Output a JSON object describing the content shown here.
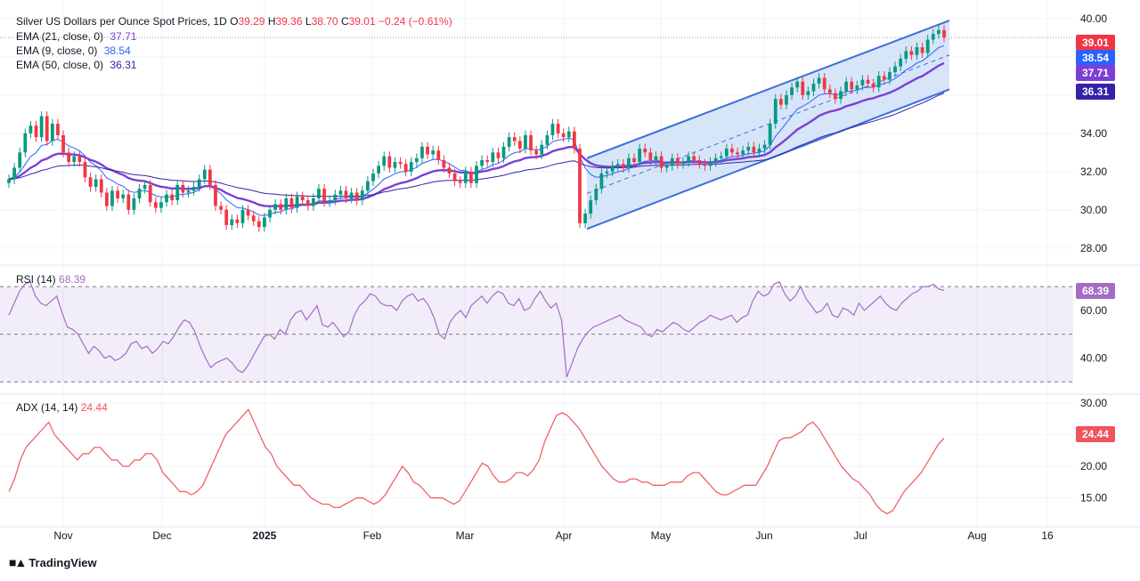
{
  "header": {
    "symbol": "Silver US Dollars per Ounce Spot Prices",
    "interval": "1D",
    "o_label": "O",
    "o": "39.29",
    "h_label": "H",
    "h": "39.36",
    "l_label": "L",
    "l": "38.70",
    "c_label": "C",
    "c": "39.01",
    "change": "−0.24 (−0.61%)"
  },
  "legends": [
    {
      "label": "EMA (21, close, 0)",
      "value": "37.71",
      "color": "#7b3fd6"
    },
    {
      "label": "EMA (9, close, 0)",
      "value": "38.54",
      "color": "#2962ff"
    },
    {
      "label": "EMA (50, close, 0)",
      "value": "36.31",
      "color": "#3422a8"
    }
  ],
  "rsi": {
    "label": "RSI (14)",
    "value": "68.39",
    "color": "#a46cc5"
  },
  "adx": {
    "label": "ADX (14, 14)",
    "value": "24.44",
    "color": "#f2545b"
  },
  "brand": {
    "name": "TradingView"
  },
  "colors": {
    "up": "#089981",
    "down": "#f23645",
    "channel": "#3d6fd9",
    "channel_fill": "#c9dcf7"
  },
  "chart_data": [
    {
      "type": "candlestick",
      "title": "Silver US Dollars per Ounce Spot Prices, 1D",
      "x_tick_labels": [
        "Nov",
        "Dec",
        "2025",
        "Feb",
        "Mar",
        "Apr",
        "May",
        "Jun",
        "Jul",
        "Aug",
        "16"
      ],
      "y_tick_labels": [
        "28.00",
        "30.00",
        "32.00",
        "34.00",
        "36.00",
        "38.00",
        "40.00"
      ],
      "ylim": [
        27.2,
        40.6
      ],
      "last_price": 39.01,
      "price_tags": [
        {
          "value": "39.01",
          "color": "#f23645"
        },
        {
          "value": "38.54",
          "color": "#2962ff"
        },
        {
          "value": "37.71",
          "color": "#7b3fd6"
        },
        {
          "value": "36.31",
          "color": "#3422a8"
        }
      ],
      "closes": [
        31.6,
        32.2,
        33.0,
        34.0,
        34.4,
        33.8,
        34.9,
        33.6,
        34.5,
        33.9,
        33.0,
        32.5,
        32.8,
        32.5,
        31.7,
        31.2,
        31.6,
        30.9,
        30.2,
        31.0,
        30.6,
        30.8,
        30.0,
        30.6,
        31.1,
        31.3,
        30.4,
        30.1,
        30.4,
        30.8,
        30.5,
        31.3,
        30.9,
        31.0,
        31.2,
        31.6,
        32.1,
        31.3,
        30.2,
        30.0,
        29.2,
        29.5,
        29.3,
        30.0,
        29.7,
        29.4,
        29.1,
        29.6,
        30.0,
        30.3,
        30.0,
        30.6,
        30.1,
        30.7,
        30.5,
        30.2,
        30.6,
        31.1,
        30.4,
        30.5,
        30.8,
        31.0,
        30.6,
        30.9,
        30.5,
        31.0,
        31.5,
        31.9,
        32.3,
        32.8,
        32.2,
        32.5,
        32.4,
        32.0,
        32.5,
        32.7,
        33.3,
        32.9,
        33.1,
        32.6,
        32.2,
        31.9,
        31.5,
        31.4,
        32.0,
        31.4,
        32.3,
        32.6,
        32.5,
        33.0,
        32.7,
        33.3,
        33.8,
        33.6,
        33.2,
        33.9,
        33.1,
        32.9,
        33.4,
        33.9,
        34.5,
        34.0,
        33.8,
        34.1,
        33.2,
        29.3,
        29.8,
        30.5,
        31.1,
        31.9,
        32.0,
        32.3,
        32.4,
        32.2,
        32.7,
        32.5,
        33.2,
        33.0,
        32.6,
        32.8,
        32.2,
        32.3,
        32.7,
        32.4,
        32.5,
        32.8,
        32.6,
        32.4,
        32.3,
        32.5,
        32.7,
        32.8,
        33.2,
        33.0,
        32.9,
        33.1,
        33.3,
        33.0,
        33.2,
        33.4,
        34.5,
        35.8,
        35.5,
        36.0,
        36.4,
        36.7,
        36.0,
        36.2,
        36.6,
        36.9,
        36.3,
        36.1,
        35.8,
        36.2,
        36.7,
        36.3,
        36.5,
        36.8,
        36.6,
        36.4,
        37.0,
        36.8,
        37.2,
        37.5,
        37.9,
        38.3,
        38.1,
        38.5,
        38.2,
        38.9,
        39.2,
        39.4,
        39.01
      ]
    },
    {
      "type": "line",
      "title": "RSI (14)",
      "y_tick_labels": [
        "40.00",
        "60.00"
      ],
      "ylim": [
        26,
        76
      ],
      "bands": [
        70,
        50,
        30
      ],
      "last_value": 68.39,
      "values": [
        58,
        63,
        68,
        71,
        72,
        66,
        63,
        62,
        64,
        66,
        59,
        53,
        52,
        50,
        46,
        42,
        45,
        43,
        40,
        41,
        39,
        40,
        42,
        46,
        47,
        44,
        45,
        42,
        44,
        47,
        46,
        49,
        53,
        56,
        55,
        51,
        45,
        40,
        36,
        38,
        39,
        40,
        38,
        35,
        34,
        37,
        41,
        45,
        49,
        50,
        48,
        52,
        50,
        56,
        59,
        60,
        56,
        59,
        62,
        54,
        53,
        55,
        52,
        49,
        51,
        58,
        62,
        64,
        67,
        66,
        63,
        62,
        62,
        60,
        64,
        66,
        67,
        64,
        65,
        62,
        57,
        50,
        48,
        55,
        58,
        60,
        57,
        62,
        64,
        66,
        63,
        66,
        68,
        67,
        63,
        62,
        65,
        60,
        61,
        65,
        68,
        64,
        61,
        63,
        56,
        32,
        38,
        44,
        48,
        51,
        53,
        54,
        55,
        56,
        57,
        58,
        56,
        55,
        54,
        53,
        50,
        49,
        52,
        51,
        53,
        55,
        54,
        52,
        51,
        53,
        55,
        56,
        58,
        57,
        56,
        57,
        58,
        55,
        57,
        58,
        64,
        68,
        66,
        67,
        71,
        72,
        67,
        64,
        66,
        70,
        65,
        62,
        59,
        60,
        63,
        58,
        57,
        61,
        60,
        58,
        63,
        60,
        62,
        64,
        66,
        63,
        61,
        60,
        63,
        65,
        67,
        68,
        70,
        70,
        71,
        69,
        68.39
      ]
    },
    {
      "type": "line",
      "title": "ADX (14, 14)",
      "y_tick_labels": [
        "15.00",
        "20.00",
        "25.00",
        "30.00"
      ],
      "ylim": [
        11,
        31
      ],
      "last_value": 24.44,
      "values": [
        16,
        18,
        21,
        23,
        24,
        25,
        26,
        27,
        25,
        24,
        23,
        22,
        21,
        22,
        22,
        23,
        23,
        22,
        21,
        21,
        20,
        20,
        21,
        21,
        22,
        22,
        21,
        19,
        18,
        17,
        16,
        16,
        15.5,
        16,
        17,
        19,
        21,
        23,
        25,
        26,
        27,
        28,
        29,
        27,
        25,
        23,
        22,
        20,
        19,
        18,
        17,
        17,
        16,
        15,
        14.5,
        14,
        14,
        13.5,
        13.5,
        14,
        14.5,
        15,
        15,
        14.5,
        14,
        14.5,
        15.5,
        17,
        18.5,
        20,
        19,
        17.5,
        17,
        16,
        15,
        15,
        15,
        14.5,
        14,
        14.5,
        16,
        17.5,
        19,
        20.5,
        20,
        18.5,
        17.5,
        17.5,
        18,
        19,
        19,
        18.5,
        19.5,
        21,
        24,
        26,
        28,
        28.5,
        28,
        27,
        26,
        24.5,
        23,
        21.5,
        20,
        19,
        18,
        17.5,
        17.5,
        18,
        18,
        17.5,
        17.5,
        17,
        17,
        17,
        17.5,
        17.5,
        17.5,
        18.5,
        19,
        19,
        18,
        17,
        16,
        15.5,
        15.5,
        16,
        16.5,
        17,
        17,
        17,
        18.5,
        20,
        22,
        24,
        24.5,
        24.5,
        25,
        25.5,
        26.5,
        27,
        26,
        24.5,
        23,
        21.5,
        20,
        19,
        18,
        17.5,
        16.5,
        15.5,
        14,
        13,
        12.5,
        13,
        14.5,
        16,
        17,
        18,
        19,
        20.5,
        22,
        23.5,
        24.44
      ]
    }
  ]
}
